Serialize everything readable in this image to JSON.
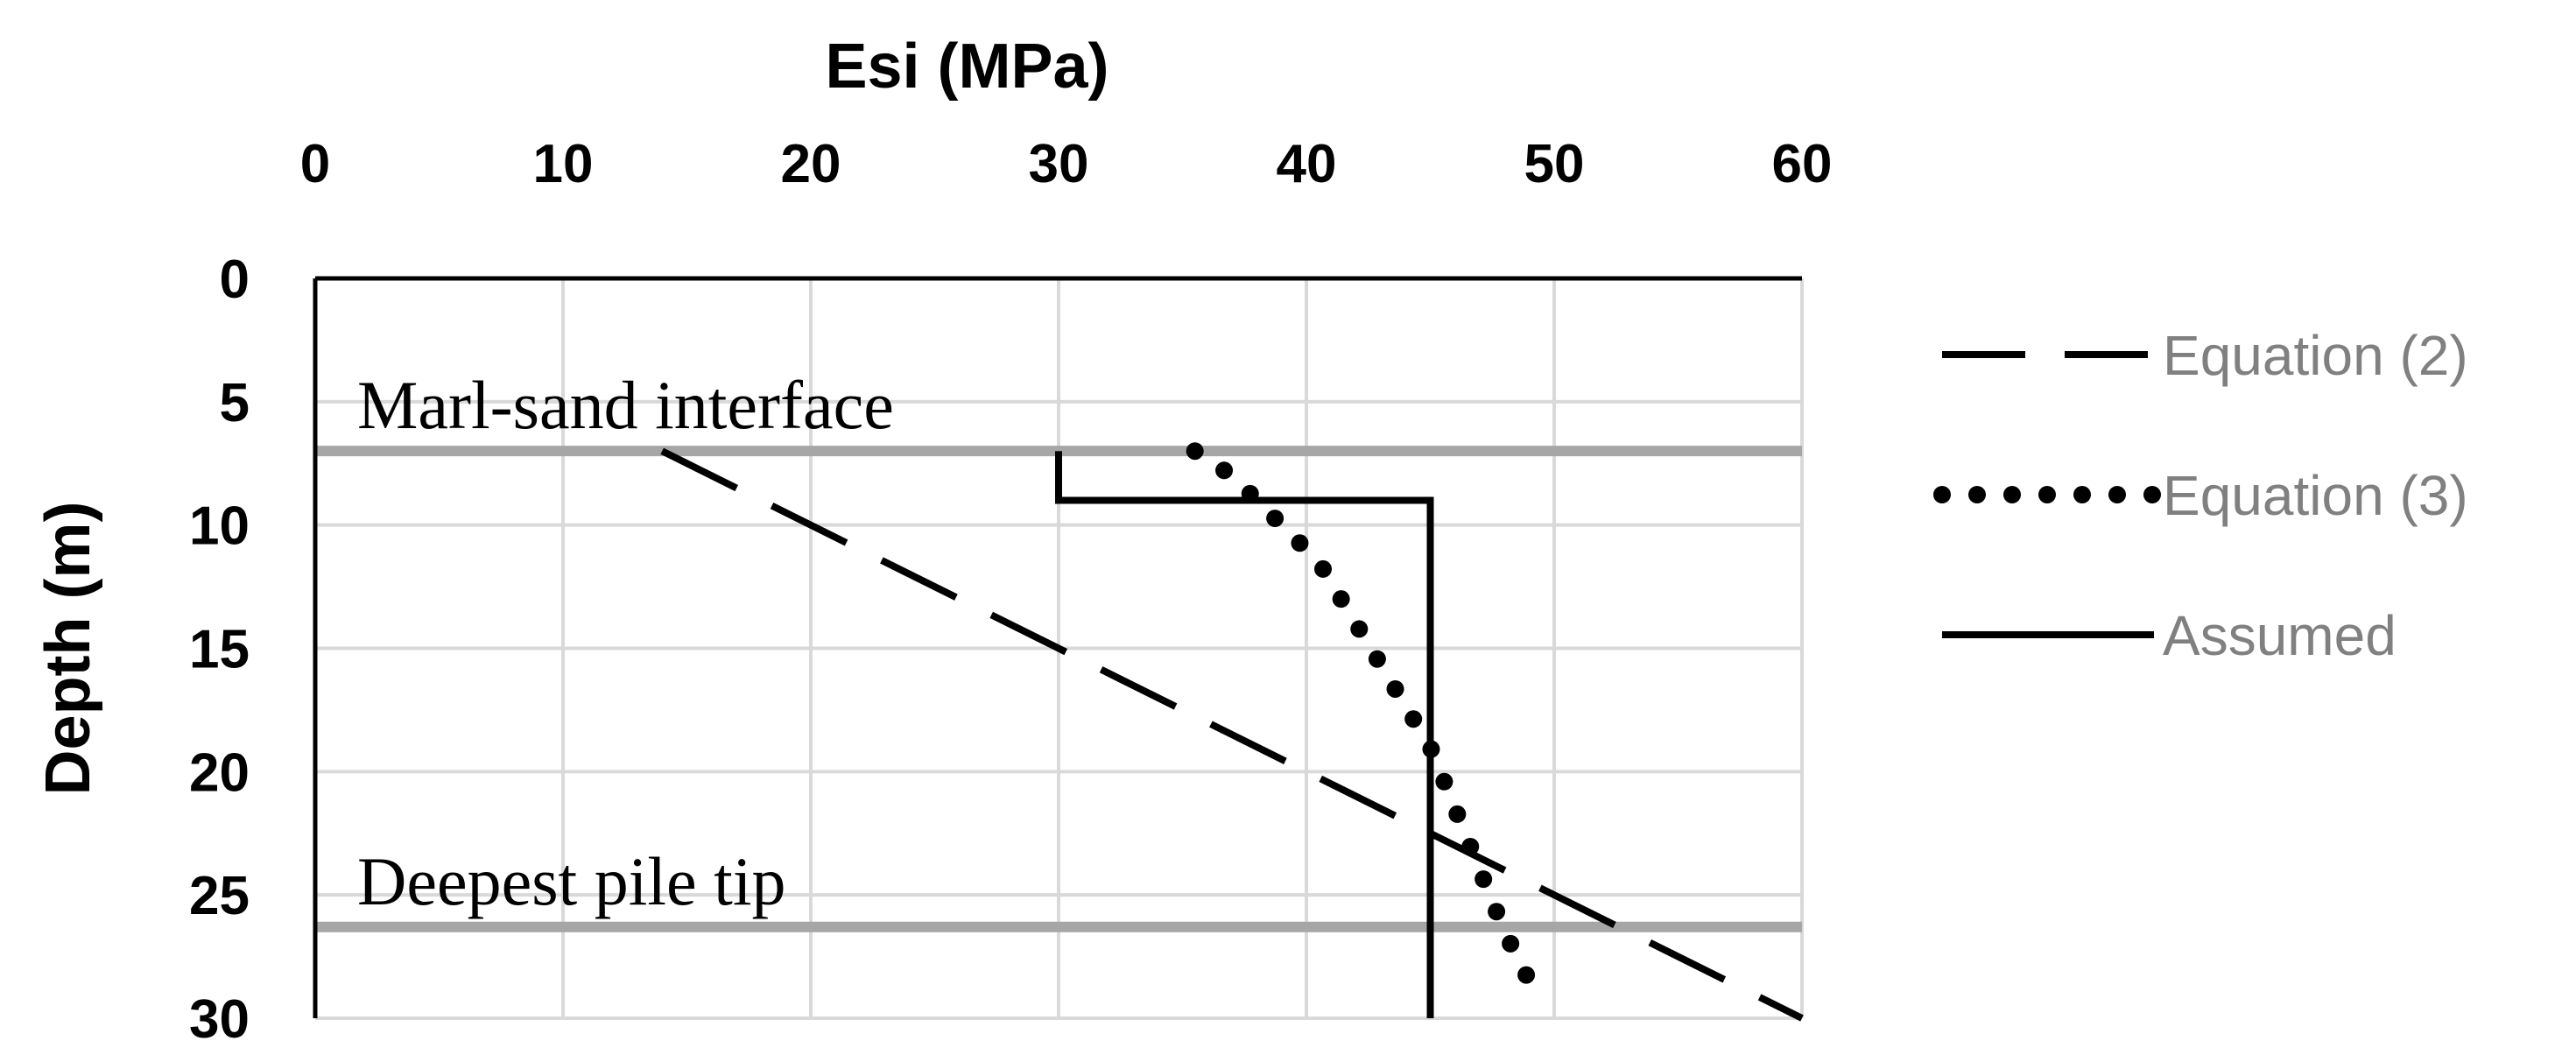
{
  "chart_data": {
    "type": "line",
    "title": "",
    "xlabel": "Esi (MPa)",
    "ylabel": "Depth (m)",
    "x_axis_position": "top",
    "y_axis_inverted": true,
    "xlim": [
      0,
      60
    ],
    "ylim": [
      0,
      30
    ],
    "x_ticks": [
      0,
      10,
      20,
      30,
      40,
      50,
      60
    ],
    "y_ticks": [
      0,
      5,
      10,
      15,
      20,
      25,
      30
    ],
    "grid": true,
    "legend_placement": "right",
    "series": [
      {
        "name": "Equation (2)",
        "style": "dashed",
        "color": "#000000",
        "points": [
          [
            14,
            7
          ],
          [
            60,
            30
          ]
        ]
      },
      {
        "name": "Equation (3)",
        "style": "dotted",
        "color": "#000000",
        "points": [
          [
            35.5,
            7
          ],
          [
            37,
            8
          ],
          [
            38.5,
            9.5
          ],
          [
            40.5,
            11.5
          ],
          [
            42,
            14
          ],
          [
            43.5,
            16.5
          ],
          [
            45,
            19
          ],
          [
            46,
            21.5
          ],
          [
            47,
            24
          ],
          [
            48,
            26.5
          ],
          [
            49,
            28.5
          ],
          [
            49.5,
            29.5
          ]
        ]
      },
      {
        "name": "Assumed",
        "style": "solid",
        "color": "#000000",
        "points": [
          [
            30,
            7
          ],
          [
            30,
            9
          ],
          [
            45,
            9
          ],
          [
            45,
            30
          ]
        ]
      }
    ],
    "reference_lines": [
      {
        "depth": 7,
        "label": "Marl-sand interface",
        "color": "#A6A6A6"
      },
      {
        "depth": 26.3,
        "label": "Deepest pile tip",
        "color": "#A6A6A6"
      }
    ]
  }
}
